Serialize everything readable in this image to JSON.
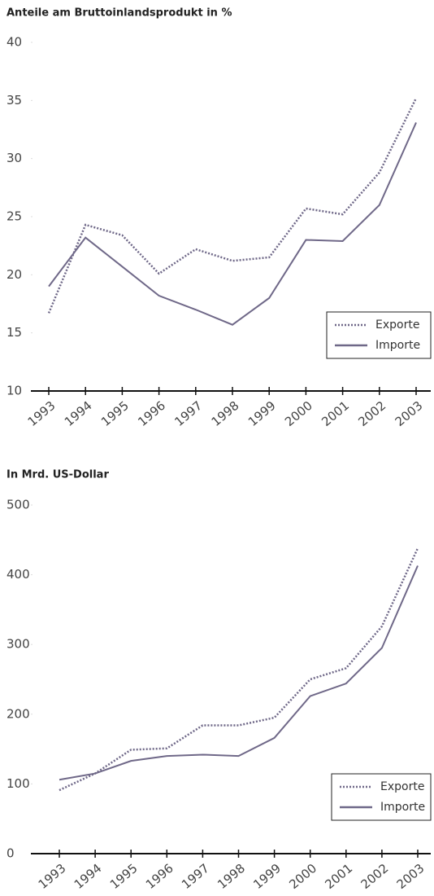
{
  "chart_data": [
    {
      "type": "line",
      "title": "Anteile am Bruttoinlandsprodukt in %",
      "categories": [
        "1993",
        "1994",
        "1995",
        "1996",
        "1997",
        "1998",
        "1999",
        "2000",
        "2001",
        "2002",
        "2003"
      ],
      "series": [
        {
          "name": "Exporte",
          "color": "#6f6888",
          "dashed": true,
          "values": [
            16.7,
            24.3,
            23.4,
            20.1,
            22.2,
            21.2,
            21.5,
            25.7,
            25.2,
            28.8,
            35.2
          ]
        },
        {
          "name": "Importe",
          "color": "#6f6888",
          "dashed": false,
          "values": [
            19.0,
            23.2,
            20.7,
            18.2,
            17.0,
            15.7,
            18.0,
            23.0,
            22.9,
            26.0,
            33.1
          ]
        }
      ],
      "ylim": [
        10,
        40
      ],
      "yticks": [
        10,
        15,
        20,
        25,
        30,
        35,
        40
      ],
      "legend": "lower right"
    },
    {
      "type": "line",
      "title": "In Mrd. US-Dollar",
      "categories": [
        "1993",
        "1994",
        "1995",
        "1996",
        "1997",
        "1998",
        "1999",
        "2000",
        "2001",
        "2002",
        "2003"
      ],
      "series": [
        {
          "name": "Exporte",
          "color": "#6f6888",
          "dashed": true,
          "values": [
            91,
            115,
            149,
            151,
            184,
            184,
            195,
            250,
            266,
            326,
            438
          ]
        },
        {
          "name": "Importe",
          "color": "#6f6888",
          "dashed": false,
          "values": [
            106,
            115,
            133,
            140,
            142,
            140,
            166,
            226,
            244,
            295,
            413
          ]
        }
      ],
      "ylim": [
        0,
        500
      ],
      "yticks": [
        0,
        100,
        200,
        300,
        400,
        500
      ],
      "legend": "lower right"
    }
  ]
}
